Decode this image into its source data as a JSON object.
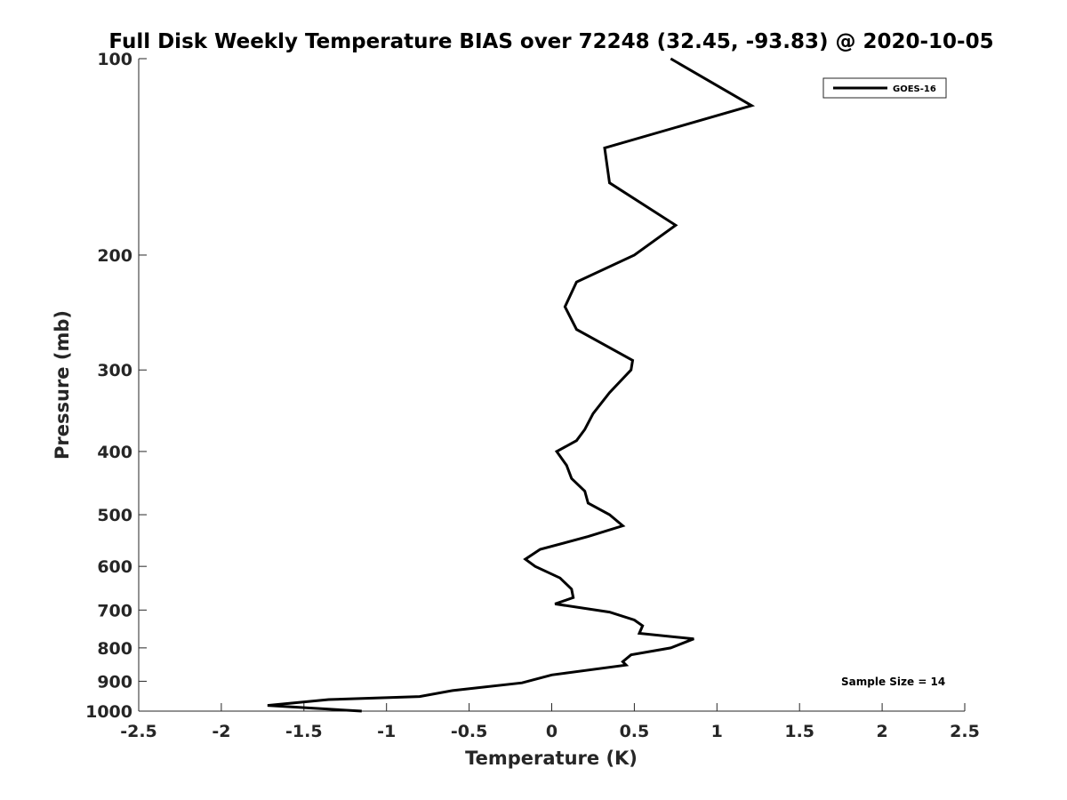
{
  "chart_data": {
    "type": "line",
    "title": "Full Disk Weekly Temperature BIAS over 72248 (32.45, -93.83) @ 2020-10-05",
    "xlabel": "Temperature (K)",
    "ylabel": "Pressure (mb)",
    "xlim": [
      -2.5,
      2.5
    ],
    "ylim": [
      100,
      1000
    ],
    "y_scale": "log",
    "y_reversed": true,
    "x_ticks": [
      {
        "value": -2.5,
        "label": "-2.5"
      },
      {
        "value": -2,
        "label": "-2"
      },
      {
        "value": -1.5,
        "label": "-1.5"
      },
      {
        "value": -1,
        "label": "-1"
      },
      {
        "value": -0.5,
        "label": "-0.5"
      },
      {
        "value": 0,
        "label": "0"
      },
      {
        "value": 0.5,
        "label": "0.5"
      },
      {
        "value": 1,
        "label": "1"
      },
      {
        "value": 1.5,
        "label": "1.5"
      },
      {
        "value": 2,
        "label": "2"
      },
      {
        "value": 2.5,
        "label": "2.5"
      }
    ],
    "y_ticks": [
      {
        "value": 100,
        "label": "100"
      },
      {
        "value": 200,
        "label": "200"
      },
      {
        "value": 300,
        "label": "300"
      },
      {
        "value": 400,
        "label": "400"
      },
      {
        "value": 500,
        "label": "500"
      },
      {
        "value": 600,
        "label": "600"
      },
      {
        "value": 700,
        "label": "700"
      },
      {
        "value": 800,
        "label": "800"
      },
      {
        "value": 900,
        "label": "900"
      },
      {
        "value": 1000,
        "label": "1000"
      }
    ],
    "grid": false,
    "legend": "top-right",
    "annotation": "Sample Size = 14",
    "series": [
      {
        "name": "GOES-16",
        "color": "#000000",
        "points": [
          {
            "t": 0.72,
            "p": 100
          },
          {
            "t": 1.21,
            "p": 118
          },
          {
            "t": 0.32,
            "p": 137
          },
          {
            "t": 0.35,
            "p": 155
          },
          {
            "t": 0.75,
            "p": 180
          },
          {
            "t": 0.5,
            "p": 200
          },
          {
            "t": 0.15,
            "p": 220
          },
          {
            "t": 0.08,
            "p": 240
          },
          {
            "t": 0.15,
            "p": 260
          },
          {
            "t": 0.49,
            "p": 290
          },
          {
            "t": 0.48,
            "p": 300
          },
          {
            "t": 0.35,
            "p": 325
          },
          {
            "t": 0.25,
            "p": 350
          },
          {
            "t": 0.2,
            "p": 370
          },
          {
            "t": 0.15,
            "p": 385
          },
          {
            "t": 0.03,
            "p": 400
          },
          {
            "t": 0.09,
            "p": 420
          },
          {
            "t": 0.12,
            "p": 440
          },
          {
            "t": 0.2,
            "p": 460
          },
          {
            "t": 0.22,
            "p": 480
          },
          {
            "t": 0.35,
            "p": 500
          },
          {
            "t": 0.43,
            "p": 520
          },
          {
            "t": 0.22,
            "p": 540
          },
          {
            "t": -0.07,
            "p": 565
          },
          {
            "t": -0.16,
            "p": 585
          },
          {
            "t": -0.1,
            "p": 600
          },
          {
            "t": 0.05,
            "p": 625
          },
          {
            "t": 0.12,
            "p": 650
          },
          {
            "t": 0.13,
            "p": 670
          },
          {
            "t": 0.02,
            "p": 685
          },
          {
            "t": 0.35,
            "p": 705
          },
          {
            "t": 0.5,
            "p": 725
          },
          {
            "t": 0.55,
            "p": 740
          },
          {
            "t": 0.53,
            "p": 760
          },
          {
            "t": 0.86,
            "p": 775
          },
          {
            "t": 0.72,
            "p": 800
          },
          {
            "t": 0.48,
            "p": 820
          },
          {
            "t": 0.43,
            "p": 840
          },
          {
            "t": 0.45,
            "p": 850
          },
          {
            "t": 0.0,
            "p": 880
          },
          {
            "t": -0.18,
            "p": 905
          },
          {
            "t": -0.6,
            "p": 930
          },
          {
            "t": -0.8,
            "p": 950
          },
          {
            "t": -1.35,
            "p": 960
          },
          {
            "t": -1.72,
            "p": 980
          },
          {
            "t": -1.15,
            "p": 1000
          }
        ]
      }
    ]
  }
}
